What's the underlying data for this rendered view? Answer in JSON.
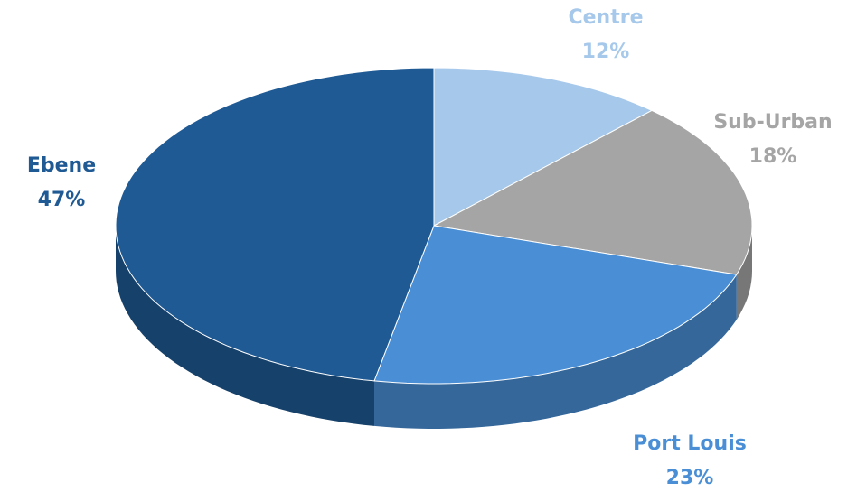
{
  "chart_data": {
    "type": "pie",
    "categories": [
      "Centre",
      "Sub-Urban",
      "Port Louis",
      "Ebene"
    ],
    "values": [
      12,
      18,
      23,
      47
    ],
    "value_labels": [
      "12%",
      "18%",
      "23%",
      "47%"
    ],
    "colors": [
      "#a6c8ea",
      "#a5a5a5",
      "#4a8fd6",
      "#1f5a94"
    ],
    "start": "top",
    "direction": "clockwise",
    "three_d": true
  }
}
